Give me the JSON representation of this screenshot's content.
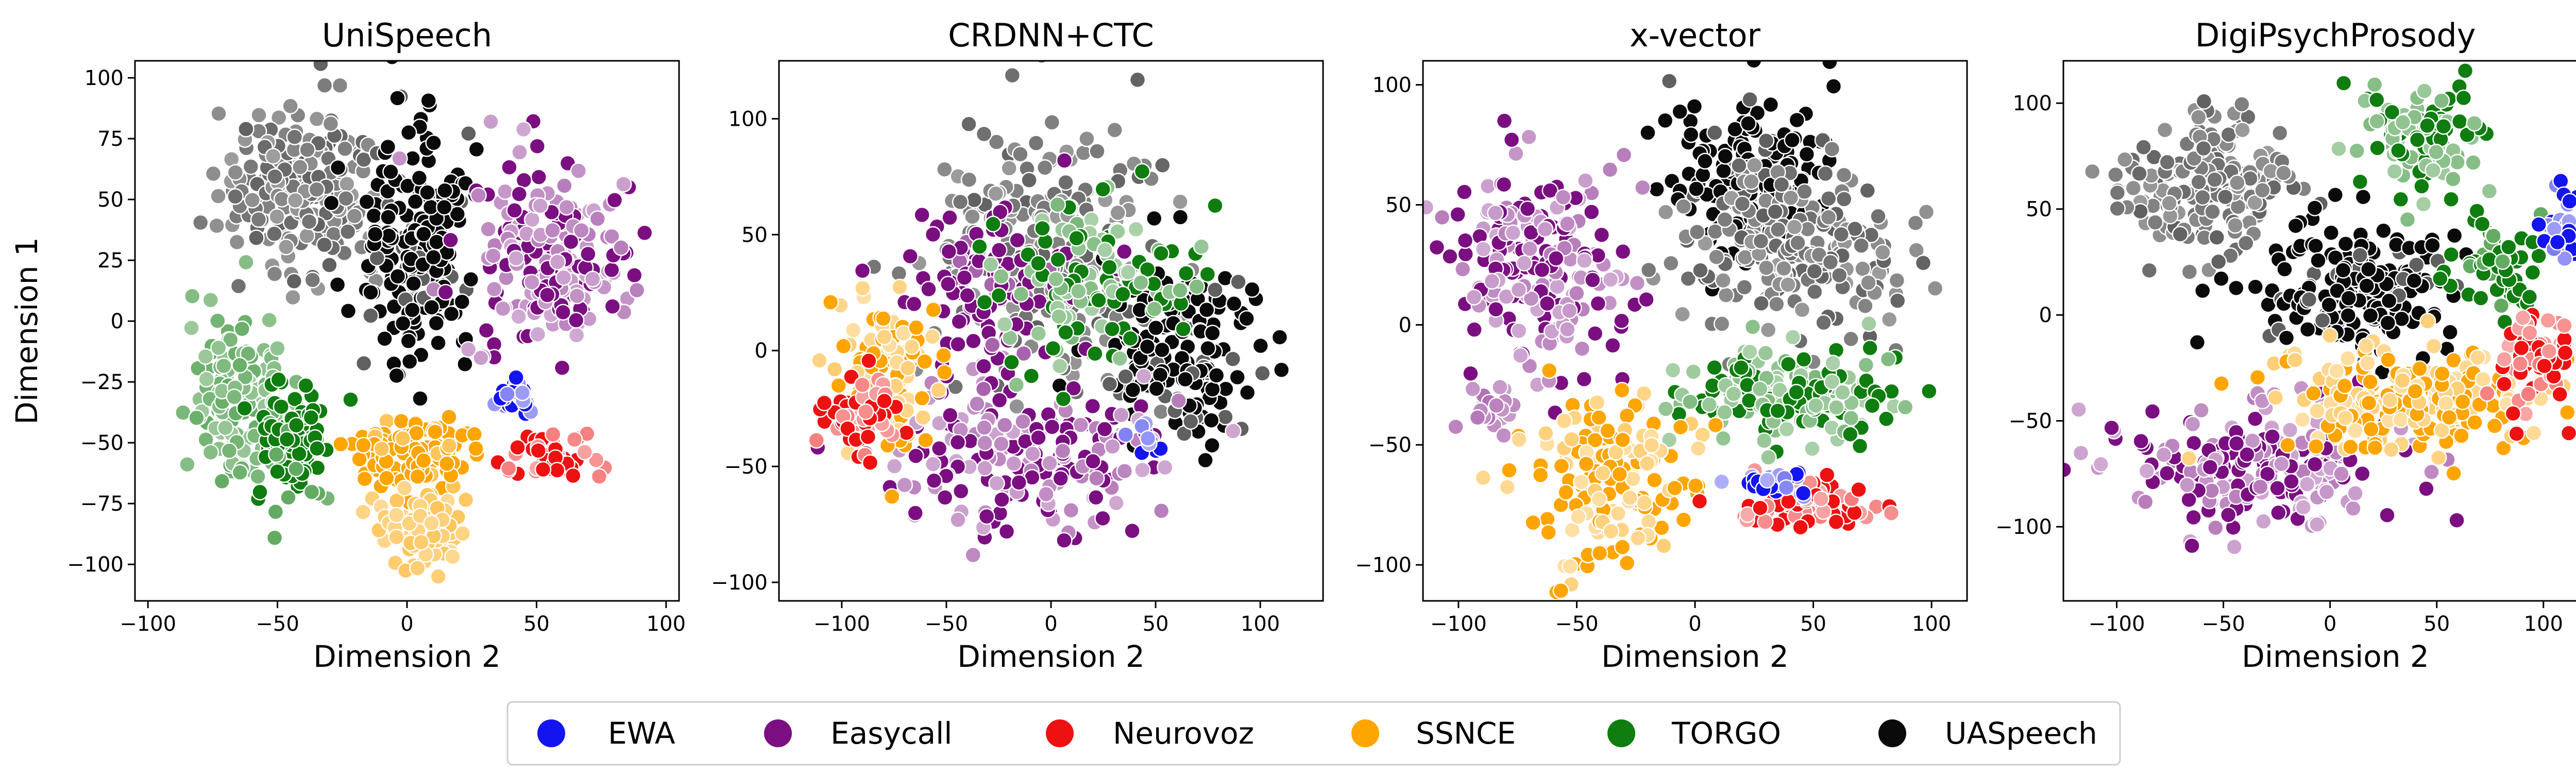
{
  "colors": {
    "EWA": "#1414ee",
    "Easycall": "#7b0f82",
    "Neurovoz": "#ee1111",
    "SSNCE": "#ffa500",
    "TORGO": "#0f7d0f",
    "UASpeech": "#0a0a0a"
  },
  "legend": {
    "items": [
      "EWA",
      "Easycall",
      "Neurovoz",
      "SSNCE",
      "TORGO",
      "UASpeech"
    ]
  },
  "chart_data": [
    {
      "type": "scatter",
      "title": "UniSpeech",
      "xlabel": "Dimension 2",
      "ylabel": "Dimension 1",
      "xlim": [
        -105,
        105
      ],
      "ylim": [
        -115,
        107
      ],
      "xticks": [
        -100,
        -50,
        0,
        50,
        100
      ],
      "yticks": [
        -100,
        -75,
        -50,
        -25,
        0,
        25,
        50,
        75,
        100
      ],
      "clusters": [
        {
          "label": "UASpeech",
          "shade": "light",
          "cx": -40,
          "cy": 55,
          "rx": 32,
          "ry": 35,
          "n": 220
        },
        {
          "label": "UASpeech",
          "shade": "dark",
          "cx": 5,
          "cy": 30,
          "rx": 22,
          "ry": 45,
          "n": 200
        },
        {
          "label": "Easycall",
          "shade": "mixed",
          "cx": 55,
          "cy": 25,
          "rx": 30,
          "ry": 38,
          "n": 200
        },
        {
          "label": "TORGO",
          "shade": "light",
          "cx": -65,
          "cy": -30,
          "rx": 20,
          "ry": 35,
          "n": 130
        },
        {
          "label": "TORGO",
          "shade": "dark",
          "cx": -45,
          "cy": -50,
          "rx": 15,
          "ry": 25,
          "n": 90
        },
        {
          "label": "SSNCE",
          "shade": "dark",
          "cx": 5,
          "cy": -55,
          "rx": 22,
          "ry": 18,
          "n": 110
        },
        {
          "label": "SSNCE",
          "shade": "light",
          "cx": 5,
          "cy": -85,
          "rx": 18,
          "ry": 15,
          "n": 80
        },
        {
          "label": "EWA",
          "shade": "mixed",
          "cx": 42,
          "cy": -32,
          "rx": 7,
          "ry": 10,
          "n": 30
        },
        {
          "label": "Neurovoz",
          "shade": "mixed",
          "cx": 55,
          "cy": -57,
          "rx": 16,
          "ry": 9,
          "n": 50
        }
      ]
    },
    {
      "type": "scatter",
      "title": "CRDNN+CTC",
      "xlabel": "Dimension 2",
      "ylabel": "",
      "xlim": [
        -130,
        130
      ],
      "ylim": [
        -108,
        125
      ],
      "xticks": [
        -100,
        -50,
        0,
        50,
        100
      ],
      "yticks": [
        -100,
        -50,
        0,
        50,
        100
      ],
      "clusters": [
        {
          "label": "UASpeech",
          "shade": "light",
          "cx": -5,
          "cy": 45,
          "rx": 55,
          "ry": 60,
          "n": 230
        },
        {
          "label": "UASpeech",
          "shade": "dark",
          "cx": 60,
          "cy": 0,
          "rx": 40,
          "ry": 40,
          "n": 160
        },
        {
          "label": "Easycall",
          "shade": "mixed",
          "cx": -10,
          "cy": -45,
          "rx": 70,
          "ry": 35,
          "n": 200
        },
        {
          "label": "Easycall",
          "shade": "dark",
          "cx": -30,
          "cy": 30,
          "rx": 40,
          "ry": 40,
          "n": 90
        },
        {
          "label": "SSNCE",
          "shade": "mixed",
          "cx": -80,
          "cy": -10,
          "rx": 25,
          "ry": 35,
          "n": 110
        },
        {
          "label": "Neurovoz",
          "shade": "mixed",
          "cx": -90,
          "cy": -30,
          "rx": 20,
          "ry": 20,
          "n": 60
        },
        {
          "label": "TORGO",
          "shade": "mixed",
          "cx": 20,
          "cy": 30,
          "rx": 45,
          "ry": 40,
          "n": 120
        },
        {
          "label": "EWA",
          "shade": "mixed",
          "cx": 50,
          "cy": -40,
          "rx": 10,
          "ry": 8,
          "n": 10
        }
      ]
    },
    {
      "type": "scatter",
      "title": "x-vector",
      "xlabel": "Dimension 2",
      "ylabel": "",
      "xlim": [
        -115,
        115
      ],
      "ylim": [
        -115,
        110
      ],
      "xticks": [
        -100,
        -50,
        0,
        50,
        100
      ],
      "yticks": [
        -100,
        -50,
        0,
        50,
        100
      ],
      "clusters": [
        {
          "label": "UASpeech",
          "shade": "dark",
          "cx": 25,
          "cy": 60,
          "rx": 35,
          "ry": 35,
          "n": 170
        },
        {
          "label": "UASpeech",
          "shade": "light",
          "cx": 40,
          "cy": 30,
          "rx": 50,
          "ry": 35,
          "n": 200
        },
        {
          "label": "Easycall",
          "shade": "mixed",
          "cx": -65,
          "cy": 25,
          "rx": 35,
          "ry": 40,
          "n": 200
        },
        {
          "label": "Easycall",
          "shade": "light",
          "cx": -85,
          "cy": -35,
          "rx": 10,
          "ry": 10,
          "n": 25
        },
        {
          "label": "TORGO",
          "shade": "mixed",
          "cx": 40,
          "cy": -30,
          "rx": 45,
          "ry": 20,
          "n": 170
        },
        {
          "label": "SSNCE",
          "shade": "mixed",
          "cx": -35,
          "cy": -65,
          "rx": 35,
          "ry": 35,
          "n": 150
        },
        {
          "label": "Neurovoz",
          "shade": "mixed",
          "cx": 45,
          "cy": -75,
          "rx": 28,
          "ry": 12,
          "n": 80
        },
        {
          "label": "EWA",
          "shade": "mixed",
          "cx": 30,
          "cy": -65,
          "rx": 15,
          "ry": 6,
          "n": 25
        }
      ]
    },
    {
      "type": "scatter",
      "title": "DigiPsychProsody",
      "xlabel": "Dimension 2",
      "ylabel": "",
      "xlim": [
        -125,
        130
      ],
      "ylim": [
        -135,
        120
      ],
      "xticks": [
        -100,
        -50,
        0,
        50,
        100
      ],
      "yticks": [
        -100,
        -50,
        0,
        50,
        100
      ],
      "clusters": [
        {
          "label": "UASpeech",
          "shade": "light",
          "cx": -55,
          "cy": 60,
          "rx": 45,
          "ry": 35,
          "n": 170
        },
        {
          "label": "UASpeech",
          "shade": "dark",
          "cx": 10,
          "cy": 15,
          "rx": 45,
          "ry": 30,
          "n": 180
        },
        {
          "label": "TORGO",
          "shade": "mixed",
          "cx": 45,
          "cy": 85,
          "rx": 30,
          "ry": 25,
          "n": 120
        },
        {
          "label": "TORGO",
          "shade": "dark",
          "cx": 80,
          "cy": 20,
          "rx": 20,
          "ry": 25,
          "n": 60
        },
        {
          "label": "SSNCE",
          "shade": "mixed",
          "cx": 40,
          "cy": -40,
          "rx": 60,
          "ry": 25,
          "n": 230
        },
        {
          "label": "Easycall",
          "shade": "mixed",
          "cx": -30,
          "cy": -70,
          "rx": 65,
          "ry": 28,
          "n": 220
        },
        {
          "label": "Neurovoz",
          "shade": "mixed",
          "cx": 95,
          "cy": -20,
          "rx": 20,
          "ry": 25,
          "n": 60
        },
        {
          "label": "EWA",
          "shade": "mixed",
          "cx": 110,
          "cy": 40,
          "rx": 10,
          "ry": 18,
          "n": 40
        }
      ]
    }
  ]
}
